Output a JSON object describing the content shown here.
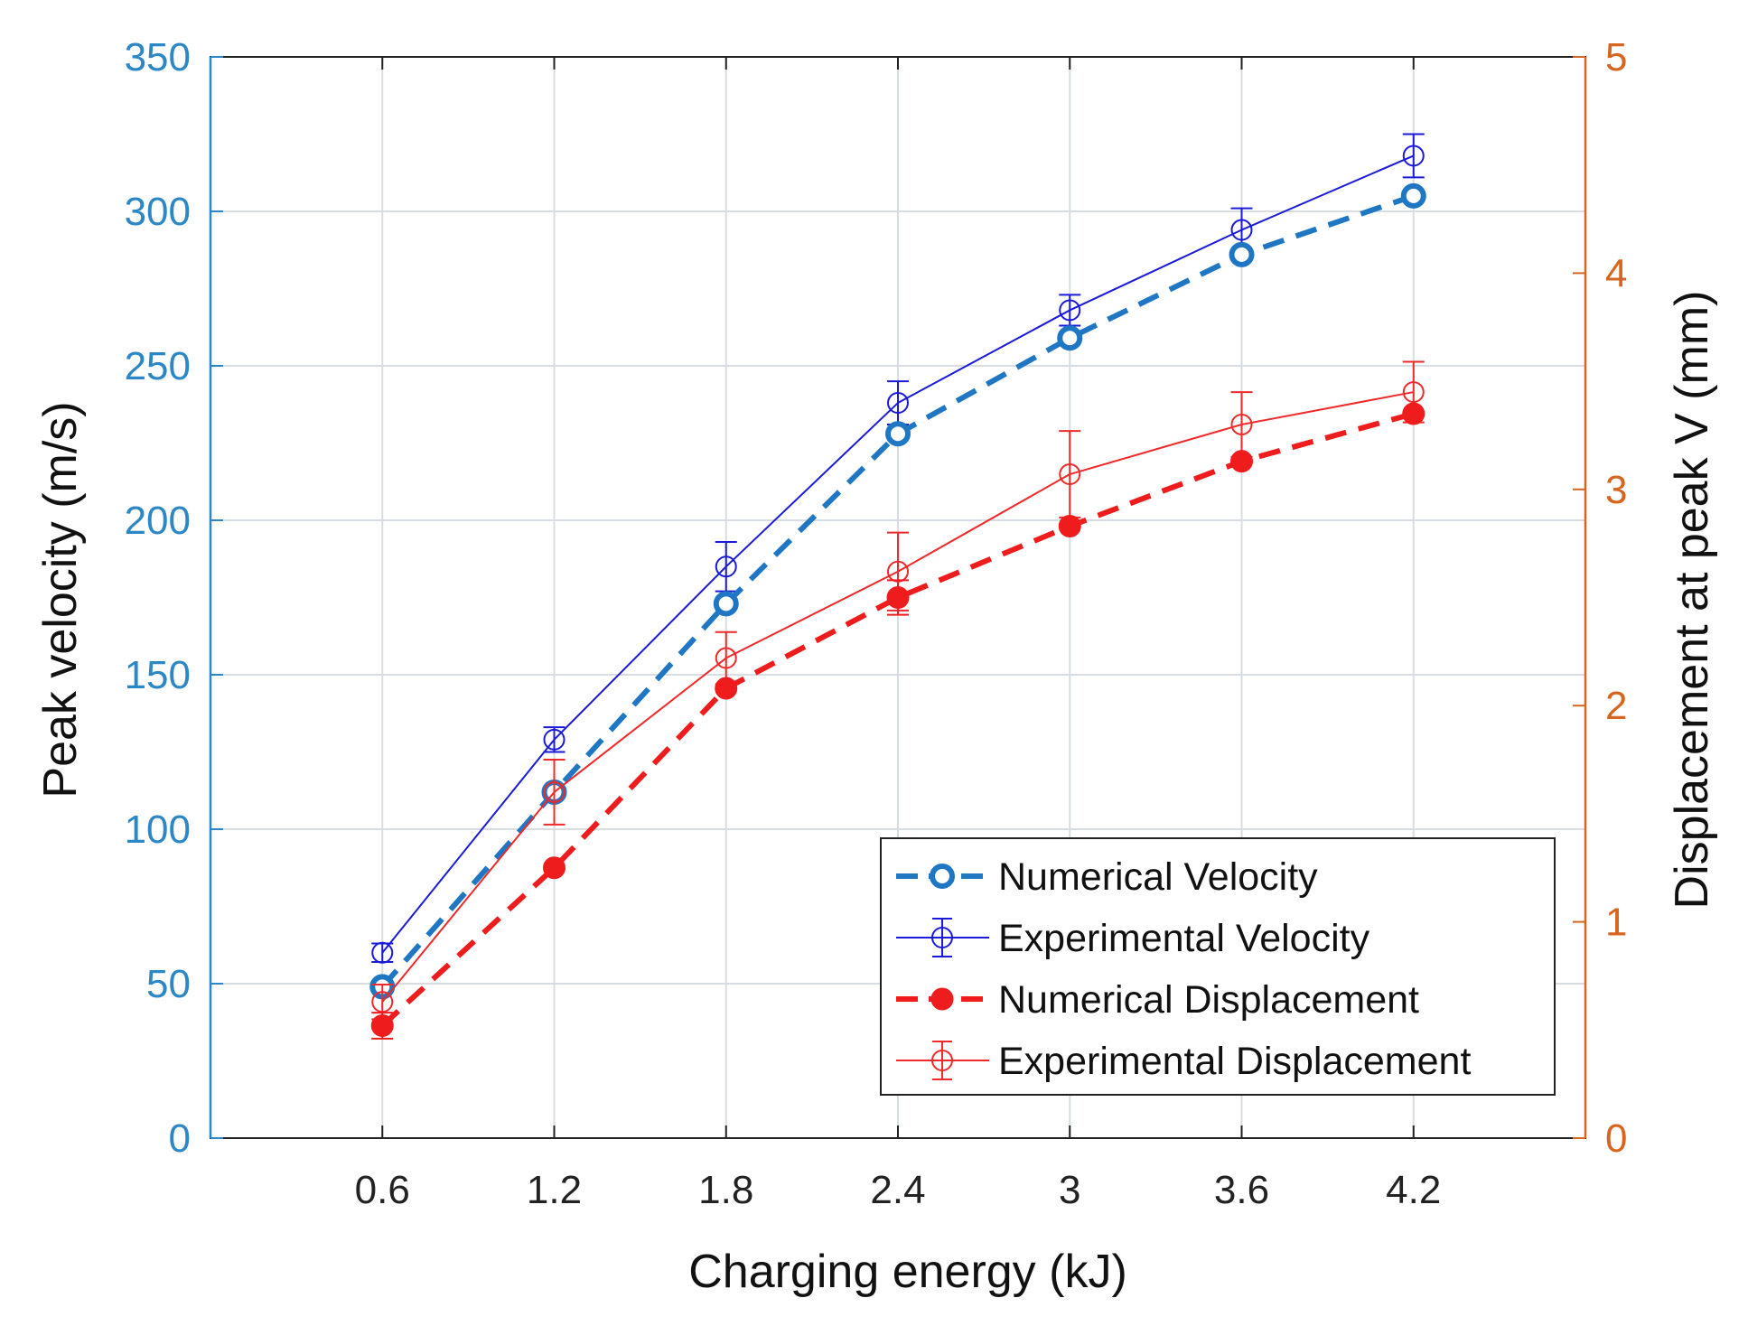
{
  "chart_data": {
    "type": "line",
    "title": "",
    "xlabel": "Charging energy (kJ)",
    "ylabel_left": "Peak velocity (m/s)",
    "ylabel_right": "Displacement at peak V (mm)",
    "x": [
      0.6,
      1.2,
      1.8,
      2.4,
      3,
      3.6,
      4.2
    ],
    "x_tick_labels": [
      "0.6",
      "1.2",
      "1.8",
      "2.4",
      "3",
      "3.6",
      "4.2"
    ],
    "xlim": [
      0,
      4.8
    ],
    "ylim_left": [
      0,
      350
    ],
    "ylim_right": [
      0,
      5
    ],
    "y_left_ticks": [
      "0",
      "50",
      "100",
      "150",
      "200",
      "250",
      "300",
      "350"
    ],
    "y_right_ticks": [
      "0",
      "1",
      "2",
      "3",
      "4",
      "5"
    ],
    "grid": true,
    "legend_position": "bottom-right",
    "colors": {
      "left_axis": "#2b87c5",
      "right_axis": "#d6651f",
      "numerical_velocity": "#1f77c4",
      "experimental_velocity": "#1a1ad8",
      "numerical_displacement": "#ee1c1c",
      "experimental_displacement": "#ee2a2a",
      "grid": "#d8dde3"
    },
    "series": [
      {
        "name": "Numerical Velocity",
        "axis": "left",
        "style": "dashed-open-circle",
        "values": [
          49,
          112,
          173,
          228,
          259,
          286,
          305
        ]
      },
      {
        "name": "Experimental Velocity",
        "axis": "left",
        "style": "solid-errorbar",
        "values": [
          60,
          129,
          185,
          238,
          268,
          294,
          318
        ],
        "errors": [
          3,
          4,
          8,
          7,
          5,
          7,
          7
        ]
      },
      {
        "name": "Numerical Displacement",
        "axis": "right",
        "style": "dashed-filled-circle",
        "values": [
          0.52,
          1.25,
          2.08,
          2.5,
          2.83,
          3.13,
          3.35
        ],
        "errors": [
          0.06,
          0,
          0,
          0.08,
          0,
          0,
          0
        ]
      },
      {
        "name": "Experimental Displacement",
        "axis": "right",
        "style": "solid-errorbar",
        "values": [
          0.63,
          1.6,
          2.22,
          2.62,
          3.07,
          3.3,
          3.45
        ],
        "errors": [
          0.08,
          0.15,
          0.12,
          0.18,
          0.2,
          0.15,
          0.14
        ]
      }
    ]
  }
}
